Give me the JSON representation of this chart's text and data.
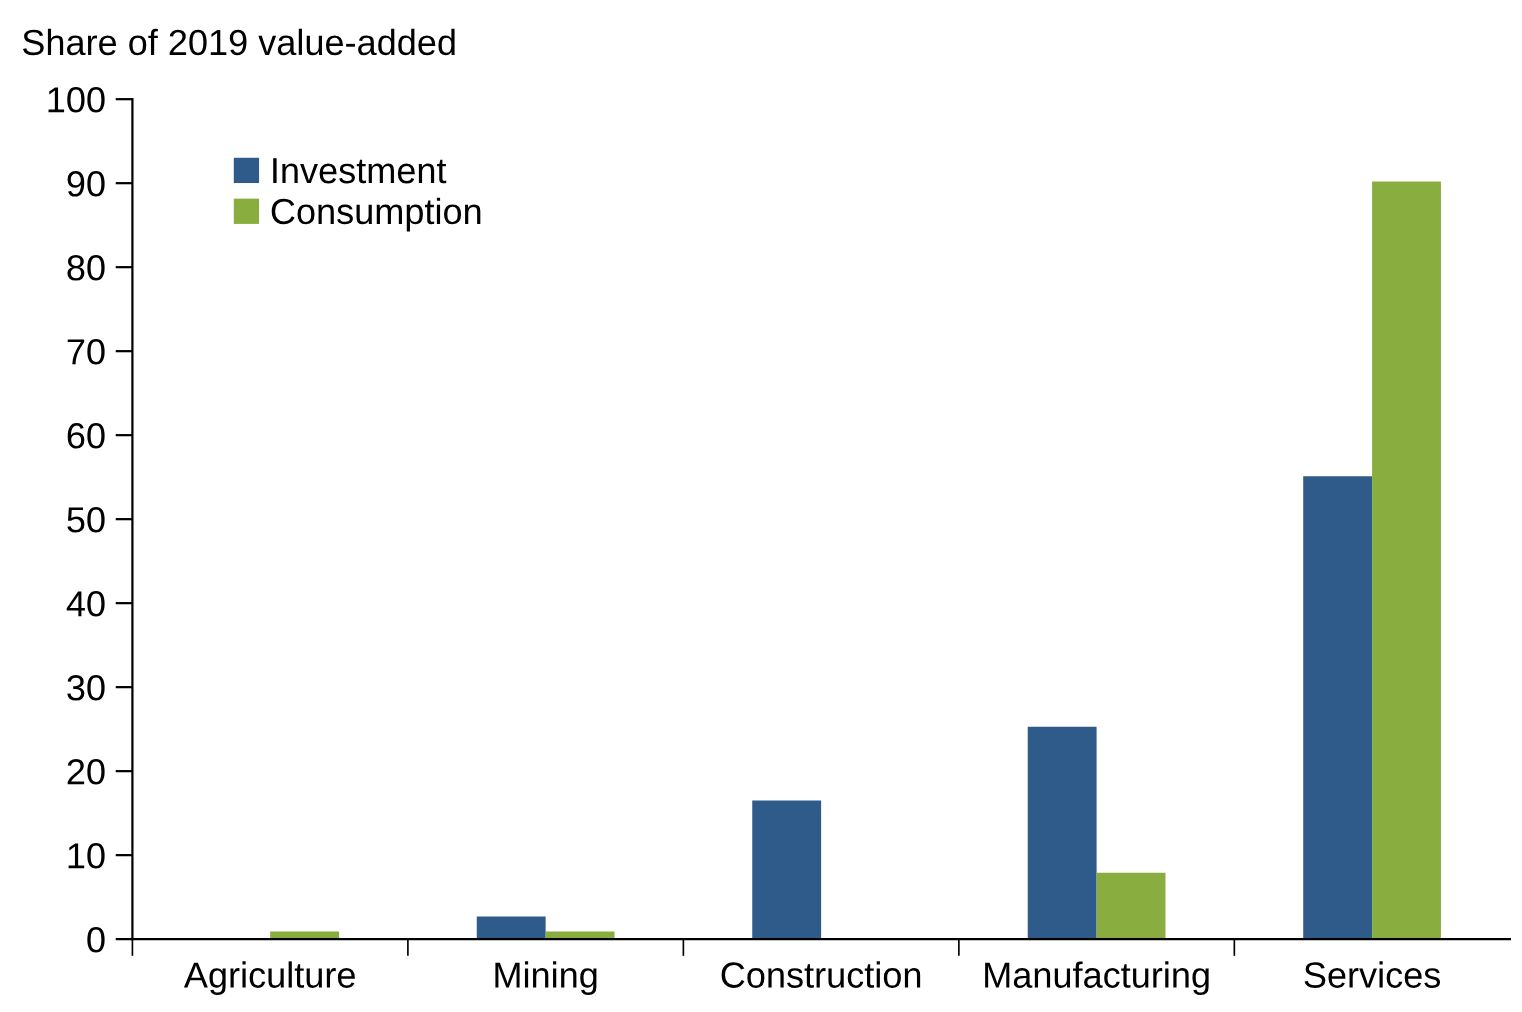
{
  "chart_data": {
    "type": "bar",
    "ylabel": "Share of 2019 value-added",
    "categories": [
      "Agriculture",
      "Mining",
      "Construction",
      "Manufacturing",
      "Services"
    ],
    "series": [
      {
        "name": "Investment",
        "color": "#2e5b8a",
        "values": [
          null,
          2.7,
          16.5,
          25.3,
          55.1
        ]
      },
      {
        "name": "Consumption",
        "color": "#8aad3f",
        "values": [
          0.9,
          0.9,
          0,
          7.9,
          90.2
        ]
      }
    ],
    "ylim": [
      0,
      100
    ],
    "yticks": [
      0,
      10,
      20,
      30,
      40,
      50,
      60,
      70,
      80,
      90,
      100
    ],
    "grid": false,
    "legend": "top left"
  }
}
